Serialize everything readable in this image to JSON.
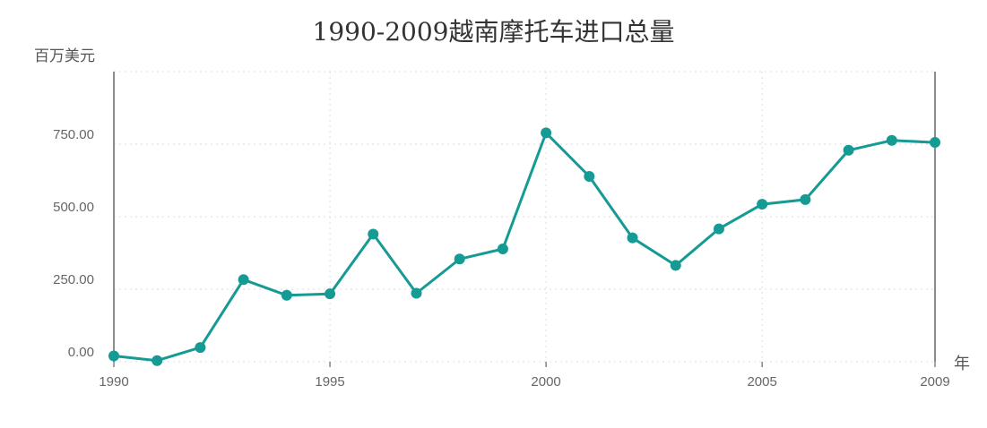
{
  "chart_data": {
    "type": "line",
    "title": "1990-2009越南摩托车进口总量",
    "ylabel": "百万美元",
    "xlabel": "年",
    "ylim": [
      0,
      1000
    ],
    "y_ticks": [
      0,
      250,
      500,
      750
    ],
    "y_tick_labels": [
      "0.00",
      "250.00",
      "500.00",
      "750.00"
    ],
    "x_ticks": [
      1990,
      1995,
      2000,
      2005,
      2009
    ],
    "x_tick_labels": [
      "1990",
      "1995",
      "2000",
      "2005",
      "2009"
    ],
    "xlim": [
      1990,
      2009
    ],
    "grid": true,
    "color": "#159a94",
    "x": [
      1990,
      1991,
      1992,
      1993,
      1994,
      1995,
      1996,
      1997,
      1998,
      1999,
      2000,
      2001,
      2002,
      2003,
      2004,
      2005,
      2006,
      2007,
      2008,
      2009
    ],
    "series": [
      {
        "values": [
          20,
          4,
          49,
          283,
          229,
          234,
          440,
          236,
          354,
          389,
          789,
          639,
          427,
          332,
          458,
          543,
          559,
          729,
          763,
          756
        ]
      }
    ]
  }
}
